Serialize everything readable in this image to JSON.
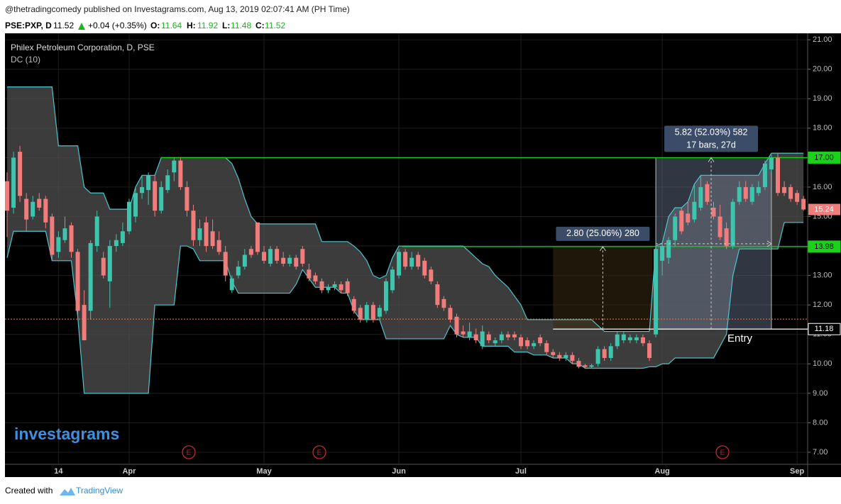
{
  "header": {
    "published": "@thetradingcomedy published on Investagrams.com, Aug 13, 2019 02:07:41 AM (PH Time)",
    "symbol": "PSE:PXP, D",
    "last": "11.52",
    "change": "+0.04 (+0.35%)",
    "o_label": "O:",
    "o": "11.64",
    "h_label": "H:",
    "h": "11.92",
    "l_label": "L:",
    "l": "11.48",
    "c_label": "C:",
    "c": "11.52"
  },
  "footer": {
    "created": "Created with",
    "brand": "TradingView"
  },
  "chart_data": {
    "type": "candlestick",
    "title": "Philex Petroleum Corporation, D, PSE",
    "indicator": "DC (10)",
    "watermark": "investagrams",
    "categories": [
      null,
      null,
      null,
      null,
      null,
      null,
      null,
      null,
      "14",
      null,
      null,
      null,
      null,
      null,
      null,
      null,
      null,
      null,
      null,
      "Apr",
      null,
      null,
      null,
      null,
      null,
      null,
      null,
      null,
      null,
      null,
      null,
      null,
      null,
      null,
      null,
      null,
      null,
      null,
      null,
      null,
      "May",
      null,
      null,
      null,
      null,
      null,
      null,
      null,
      null,
      null,
      null,
      null,
      null,
      null,
      null,
      null,
      null,
      null,
      null,
      null,
      null,
      "Jun",
      null,
      null,
      null,
      null,
      null,
      null,
      null,
      null,
      null,
      null,
      null,
      null,
      null,
      null,
      null,
      null,
      null,
      null,
      "Jul",
      null,
      null,
      null,
      null,
      null,
      null,
      null,
      null,
      null,
      null,
      null,
      null,
      null,
      null,
      null,
      null,
      null,
      null,
      null,
      null,
      null,
      "Aug",
      null,
      null,
      null,
      null,
      null,
      null,
      null,
      null,
      null,
      null,
      null,
      null,
      null,
      null,
      null,
      null,
      null,
      null,
      null,
      null,
      "Sep",
      null
    ],
    "candles": [
      [
        16.2,
        16.5,
        14.3,
        15.2
      ],
      [
        15.3,
        17.2,
        15.1,
        17.0
      ],
      [
        17.2,
        17.4,
        15.5,
        15.7
      ],
      [
        15.6,
        15.8,
        14.5,
        14.9
      ],
      [
        15.0,
        15.7,
        14.9,
        15.5
      ],
      [
        15.6,
        15.8,
        15.2,
        15.3
      ],
      [
        15.6,
        15.7,
        14.6,
        14.8
      ],
      [
        15.0,
        15.1,
        13.5,
        13.7
      ],
      [
        13.8,
        14.5,
        13.6,
        14.3
      ],
      [
        14.2,
        15.0,
        14.1,
        14.6
      ],
      [
        14.7,
        14.8,
        13.6,
        13.8
      ],
      [
        13.8,
        13.9,
        11.6,
        11.8
      ],
      [
        12.0,
        12.5,
        10.8,
        10.8
      ],
      [
        11.8,
        14.2,
        11.5,
        14.1
      ],
      [
        14.0,
        15.2,
        13.8,
        15.0
      ],
      [
        13.6,
        13.8,
        12.9,
        13.0
      ],
      [
        12.8,
        14.2,
        11.9,
        14.0
      ],
      [
        14.0,
        14.4,
        13.8,
        14.2
      ],
      [
        14.1,
        14.8,
        14.0,
        14.5
      ],
      [
        14.5,
        15.6,
        14.4,
        15.5
      ],
      [
        15.0,
        16.0,
        14.8,
        15.8
      ],
      [
        15.8,
        16.4,
        15.6,
        16.0
      ],
      [
        15.9,
        16.5,
        15.4,
        16.4
      ],
      [
        16.2,
        16.4,
        15.0,
        15.2
      ],
      [
        15.2,
        16.2,
        15.1,
        16.0
      ],
      [
        15.9,
        16.6,
        15.8,
        16.4
      ],
      [
        16.5,
        17.0,
        16.2,
        16.9
      ],
      [
        16.9,
        17.0,
        15.9,
        16.0
      ],
      [
        16.0,
        16.2,
        15.0,
        15.2
      ],
      [
        15.2,
        15.4,
        14.0,
        14.2
      ],
      [
        14.2,
        14.9,
        14.0,
        14.6
      ],
      [
        14.8,
        15.0,
        13.8,
        14.0
      ],
      [
        14.5,
        14.9,
        13.9,
        14.0
      ],
      [
        14.2,
        14.5,
        13.7,
        13.8
      ],
      [
        13.8,
        14.0,
        12.8,
        13.0
      ],
      [
        12.5,
        13.0,
        12.4,
        12.9
      ],
      [
        13.0,
        13.5,
        12.9,
        13.3
      ],
      [
        13.3,
        13.9,
        13.2,
        13.7
      ],
      [
        13.9,
        14.0,
        13.6,
        13.7
      ],
      [
        14.8,
        14.8,
        13.7,
        13.8
      ],
      [
        13.8,
        14.0,
        13.4,
        13.5
      ],
      [
        13.4,
        14.0,
        13.3,
        13.9
      ],
      [
        13.9,
        14.0,
        13.4,
        13.5
      ],
      [
        13.6,
        13.8,
        13.3,
        13.4
      ],
      [
        13.4,
        13.7,
        13.3,
        13.6
      ],
      [
        13.6,
        13.7,
        13.2,
        13.3
      ],
      [
        13.9,
        14.0,
        13.3,
        13.4
      ],
      [
        13.2,
        13.4,
        12.8,
        12.9
      ],
      [
        13.0,
        13.1,
        12.7,
        12.8
      ],
      [
        12.8,
        12.9,
        12.4,
        12.5
      ],
      [
        12.5,
        12.7,
        12.4,
        12.6
      ],
      [
        12.6,
        12.8,
        12.5,
        12.7
      ],
      [
        12.7,
        12.8,
        12.4,
        12.5
      ],
      [
        12.8,
        12.9,
        12.3,
        12.4
      ],
      [
        12.2,
        12.3,
        11.7,
        11.8
      ],
      [
        11.9,
        12.0,
        11.4,
        11.5
      ],
      [
        11.5,
        12.1,
        11.4,
        12.0
      ],
      [
        12.0,
        12.1,
        11.4,
        11.5
      ],
      [
        11.6,
        12.0,
        11.5,
        11.9
      ],
      [
        11.8,
        12.9,
        11.7,
        12.8
      ],
      [
        12.5,
        13.3,
        12.4,
        13.2
      ],
      [
        13.0,
        13.9,
        12.9,
        13.8
      ],
      [
        13.8,
        13.9,
        13.2,
        13.3
      ],
      [
        13.3,
        13.8,
        13.2,
        13.6
      ],
      [
        13.7,
        13.8,
        13.2,
        13.3
      ],
      [
        13.5,
        13.6,
        12.9,
        13.0
      ],
      [
        13.2,
        13.3,
        12.7,
        12.8
      ],
      [
        12.7,
        12.8,
        11.9,
        12.0
      ],
      [
        12.2,
        12.3,
        11.8,
        11.9
      ],
      [
        11.9,
        12.0,
        11.4,
        11.5
      ],
      [
        11.6,
        11.7,
        10.9,
        11.0
      ],
      [
        11.1,
        11.3,
        10.9,
        11.0
      ],
      [
        10.9,
        11.4,
        10.8,
        11.1
      ],
      [
        11.0,
        11.2,
        10.7,
        10.8
      ],
      [
        10.6,
        11.3,
        10.5,
        11.1
      ],
      [
        11.0,
        11.1,
        10.7,
        10.8
      ],
      [
        10.7,
        10.9,
        10.6,
        10.8
      ],
      [
        10.8,
        11.1,
        10.7,
        11.0
      ],
      [
        11.0,
        11.1,
        10.8,
        10.9
      ],
      [
        11.0,
        11.1,
        10.8,
        10.9
      ],
      [
        10.9,
        11.0,
        10.5,
        10.6
      ],
      [
        10.8,
        10.9,
        10.5,
        10.6
      ],
      [
        10.6,
        10.8,
        10.5,
        10.7
      ],
      [
        10.9,
        11.0,
        10.6,
        10.7
      ],
      [
        10.7,
        10.8,
        10.3,
        10.4
      ],
      [
        10.4,
        10.5,
        10.2,
        10.3
      ],
      [
        10.3,
        10.4,
        10.1,
        10.2
      ],
      [
        10.2,
        10.4,
        10.1,
        10.3
      ],
      [
        10.3,
        10.4,
        10.0,
        10.1
      ],
      [
        10.1,
        10.2,
        9.85,
        9.9
      ],
      [
        9.95,
        10.0,
        9.85,
        9.9
      ],
      [
        9.9,
        10.0,
        9.85,
        9.95
      ],
      [
        10.0,
        10.6,
        9.9,
        10.5
      ],
      [
        10.5,
        10.6,
        10.1,
        10.2
      ],
      [
        10.2,
        10.7,
        10.1,
        10.6
      ],
      [
        10.6,
        11.1,
        10.5,
        11.0
      ],
      [
        10.8,
        11.1,
        10.7,
        11.0
      ],
      [
        10.8,
        11.0,
        10.7,
        10.9
      ],
      [
        10.8,
        11.0,
        10.7,
        10.9
      ],
      [
        10.9,
        11.0,
        10.6,
        10.7
      ],
      [
        10.7,
        10.8,
        10.1,
        10.2
      ],
      [
        11.0,
        14.0,
        10.9,
        13.9
      ],
      [
        13.5,
        14.1,
        13.0,
        14.0
      ],
      [
        13.6,
        14.3,
        13.4,
        14.2
      ],
      [
        14.2,
        15.1,
        14.0,
        15.0
      ],
      [
        15.2,
        15.3,
        14.4,
        14.5
      ],
      [
        15.1,
        15.5,
        14.7,
        14.8
      ],
      [
        14.9,
        16.1,
        14.8,
        15.5
      ],
      [
        15.3,
        16.4,
        15.2,
        16.0
      ],
      [
        16.1,
        16.2,
        15.4,
        15.5
      ],
      [
        15.3,
        15.5,
        14.9,
        15.0
      ],
      [
        15.0,
        15.4,
        14.2,
        14.3
      ],
      [
        14.6,
        14.8,
        13.9,
        14.0
      ],
      [
        14.0,
        15.6,
        13.9,
        15.5
      ],
      [
        15.5,
        16.2,
        15.4,
        16.0
      ],
      [
        16.0,
        16.2,
        15.5,
        15.6
      ],
      [
        15.5,
        16.1,
        15.4,
        16.0
      ],
      [
        15.8,
        16.2,
        15.7,
        16.0
      ],
      [
        16.0,
        16.9,
        15.9,
        16.8
      ],
      [
        16.6,
        17.1,
        16.5,
        17.0
      ],
      [
        17.0,
        17.15,
        15.7,
        15.8
      ],
      [
        16.0,
        16.2,
        15.7,
        15.8
      ],
      [
        16.0,
        16.1,
        15.5,
        15.6
      ],
      [
        15.8,
        15.9,
        15.4,
        15.5
      ],
      [
        15.6,
        15.7,
        15.2,
        15.24
      ]
    ],
    "dc_upper": [
      19.4,
      19.4,
      19.4,
      19.4,
      19.4,
      19.4,
      19.4,
      19.4,
      17.4,
      17.4,
      17.4,
      17.4,
      16.0,
      15.8,
      15.8,
      15.8,
      15.25,
      15.25,
      15.25,
      15.25,
      16.0,
      16.4,
      16.4,
      16.4,
      17.0,
      17.0,
      17.0,
      17.0,
      17.0,
      17.0,
      17.0,
      17.0,
      17.0,
      17.0,
      17.0,
      16.8,
      16.3,
      15.6,
      15.0,
      14.75,
      14.75,
      14.75,
      14.75,
      14.75,
      14.75,
      14.75,
      14.75,
      14.75,
      14.75,
      14.15,
      14.15,
      14.15,
      14.15,
      14.15,
      14.0,
      13.8,
      13.5,
      13.0,
      12.9,
      13.0,
      13.6,
      14.0,
      14.0,
      14.0,
      14.0,
      14.0,
      14.0,
      14.0,
      14.0,
      14.0,
      14.0,
      14.0,
      13.8,
      13.6,
      13.4,
      13.3,
      13.0,
      12.8,
      12.6,
      12.3,
      12.0,
      11.5,
      11.5,
      11.5,
      11.5,
      11.5,
      11.5,
      11.5,
      11.5,
      11.5,
      11.5,
      11.5,
      11.3,
      11.1,
      11.1,
      11.1,
      11.1,
      11.1,
      11.1,
      11.1,
      11.1,
      14.0,
      14.1,
      15.0,
      15.3,
      15.3,
      15.5,
      16.1,
      16.4,
      16.4,
      16.4,
      16.4,
      16.4,
      16.4,
      16.4,
      16.4,
      16.4,
      16.4,
      16.8,
      17.15,
      17.15,
      17.15,
      17.15,
      17.15,
      17.15
    ],
    "dc_lower": [
      13.6,
      14.5,
      14.5,
      14.5,
      14.5,
      14.5,
      14.5,
      13.5,
      13.5,
      13.5,
      13.5,
      11.6,
      9.0,
      9.0,
      9.0,
      9.0,
      9.0,
      9.0,
      9.0,
      9.0,
      9.0,
      9.0,
      9.0,
      12.0,
      12.0,
      12.0,
      12.0,
      14.0,
      14.0,
      13.9,
      13.5,
      13.5,
      13.5,
      13.5,
      13.5,
      12.8,
      12.4,
      12.4,
      12.4,
      12.4,
      12.4,
      12.4,
      12.4,
      12.4,
      12.4,
      12.7,
      13.2,
      12.9,
      12.6,
      12.6,
      12.6,
      12.6,
      12.4,
      12.4,
      11.8,
      11.5,
      11.5,
      11.5,
      11.5,
      10.85,
      10.85,
      10.85,
      10.85,
      10.85,
      10.85,
      10.85,
      10.85,
      10.85,
      10.85,
      11.3,
      11.0,
      10.9,
      10.9,
      10.9,
      10.6,
      10.6,
      10.6,
      10.6,
      10.6,
      10.4,
      10.4,
      10.4,
      10.3,
      10.3,
      10.3,
      10.2,
      10.2,
      10.2,
      10.0,
      10.0,
      9.85,
      9.85,
      9.85,
      9.85,
      9.85,
      9.85,
      9.85,
      9.85,
      9.85,
      9.85,
      9.9,
      9.9,
      10.0,
      10.0,
      10.2,
      10.2,
      10.2,
      10.2,
      10.2,
      10.2,
      10.2,
      10.6,
      11.0,
      13.0,
      13.9,
      13.9,
      13.9,
      13.9,
      13.9,
      13.9,
      13.9,
      14.8,
      14.8,
      14.8,
      14.8
    ],
    "up_color": "#3fc4ad",
    "down_color": "#f07c7c",
    "dc_color": "#4cc6cf",
    "dc_fill": "#505050",
    "ylim": [
      6.59,
      21.22
    ],
    "yticks": [
      {
        "value": 7,
        "label": "7.00"
      },
      {
        "value": 8,
        "label": "8.00"
      },
      {
        "value": 9,
        "label": "9.00"
      },
      {
        "value": 10,
        "label": "10.00"
      },
      {
        "value": 11,
        "label": "11.00"
      },
      {
        "value": 12,
        "label": "12.00"
      },
      {
        "value": 13,
        "label": "13.00"
      },
      {
        "value": 14,
        "label": "14.00"
      },
      {
        "value": 15,
        "label": "15.00"
      },
      {
        "value": 16,
        "label": "16.00"
      },
      {
        "value": 17,
        "label": "17.00"
      },
      {
        "value": 18,
        "label": "18.00"
      },
      {
        "value": 19,
        "label": "19.00"
      },
      {
        "value": 20,
        "label": "20.00"
      },
      {
        "value": 21,
        "label": "21.00"
      }
    ],
    "grid": true,
    "levels": [
      {
        "value": 17,
        "label": "17.00",
        "color": "#19d219",
        "text_color": "#000000"
      },
      {
        "value": 13.98,
        "label": "13.98",
        "color": "#19d219",
        "text_color": "#000000"
      },
      {
        "value": 11.18,
        "label": "11.18",
        "color": "#ffffff",
        "text_color": "#ffffff"
      }
    ],
    "reference_line": {
      "value": 11.52,
      "color": "#e8763a"
    },
    "measures": [
      {
        "label": "2.80 (25.06%) 280",
        "from": 11.18,
        "to": 13.98
      },
      {
        "label": "5.82 (52.03%) 582",
        "sublabel": "17 bars, 27d",
        "from": 11.18,
        "to": 17.0
      }
    ],
    "annotation": "Entry",
    "earnings_markers": [
      "E",
      "E",
      "E"
    ],
    "earnings_color": "#c0272d"
  }
}
